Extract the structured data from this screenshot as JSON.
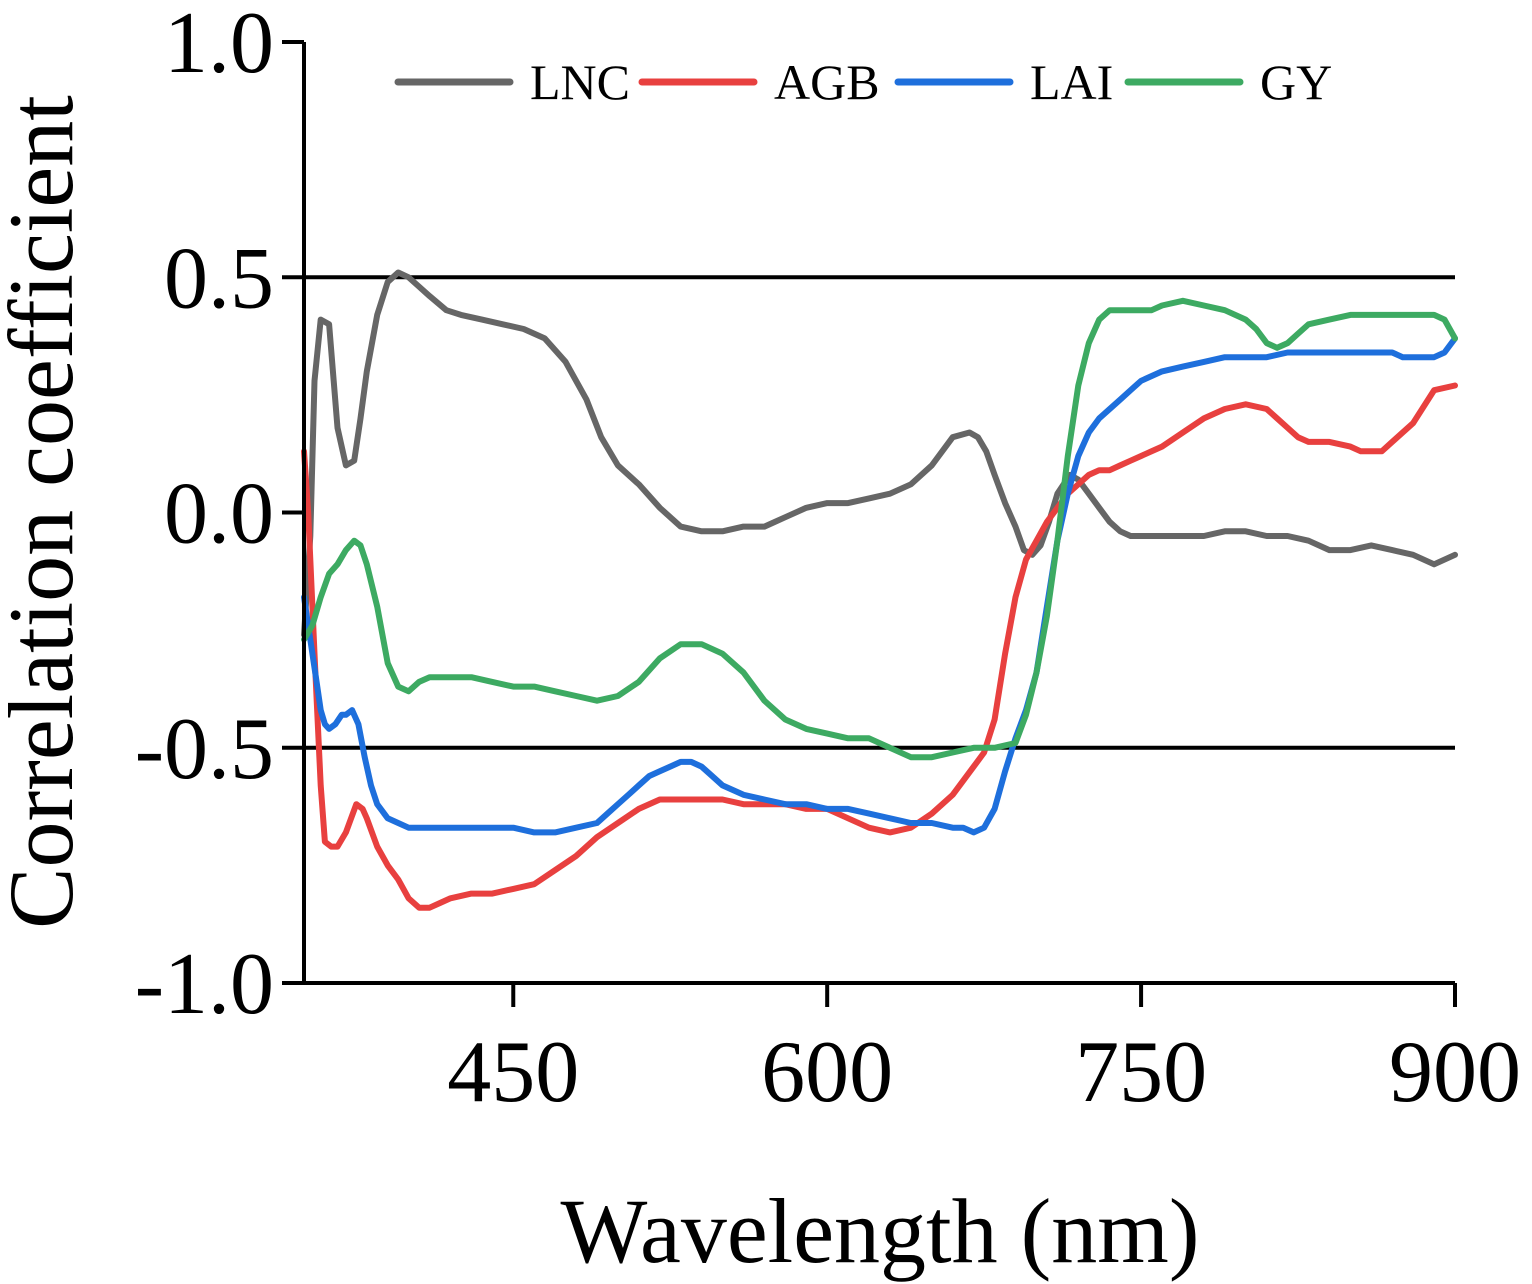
{
  "chart_data": {
    "type": "line",
    "xlabel": "Wavelength (nm)",
    "ylabel": "Correlation coefficient",
    "xlim": [
      350,
      900
    ],
    "ylim": [
      -1.0,
      1.0
    ],
    "xticks": [
      450,
      600,
      750,
      900
    ],
    "xtick_labels": [
      "450",
      "600",
      "750",
      "900"
    ],
    "yticks": [
      1.0,
      0.5,
      0.0,
      -0.5,
      -1.0
    ],
    "ytick_labels": [
      "1.0",
      "0.5",
      "0.0",
      "-0.5",
      "-1.0"
    ],
    "reference_lines": [
      0.5,
      -0.5
    ],
    "grid": false,
    "legend_position": "top",
    "series": [
      {
        "name": "LNC",
        "color": "#666666",
        "x": [
          350,
          353,
          355,
          358,
          362,
          366,
          370,
          374,
          377,
          380,
          385,
          390,
          395,
          400,
          405,
          410,
          418,
          425,
          435,
          445,
          455,
          465,
          475,
          485,
          492,
          500,
          510,
          520,
          530,
          540,
          550,
          560,
          570,
          575,
          580,
          590,
          600,
          610,
          620,
          630,
          640,
          650,
          660,
          668,
          672,
          676,
          680,
          685,
          690,
          694,
          698,
          702,
          706,
          710,
          716,
          720,
          725,
          730,
          735,
          740,
          745,
          750,
          755,
          760,
          765,
          770,
          775,
          780,
          790,
          800,
          810,
          820,
          830,
          840,
          850,
          860,
          870,
          880,
          890,
          900
        ],
        "values": [
          -0.26,
          -0.05,
          0.28,
          0.41,
          0.4,
          0.18,
          0.1,
          0.11,
          0.2,
          0.3,
          0.42,
          0.49,
          0.51,
          0.5,
          0.48,
          0.46,
          0.43,
          0.42,
          0.41,
          0.4,
          0.39,
          0.37,
          0.32,
          0.24,
          0.16,
          0.1,
          0.06,
          0.01,
          -0.03,
          -0.04,
          -0.04,
          -0.03,
          -0.03,
          -0.02,
          -0.01,
          0.01,
          0.02,
          0.02,
          0.03,
          0.04,
          0.06,
          0.1,
          0.16,
          0.17,
          0.16,
          0.13,
          0.08,
          0.02,
          -0.03,
          -0.08,
          -0.09,
          -0.07,
          -0.02,
          0.04,
          0.08,
          0.07,
          0.04,
          0.01,
          -0.02,
          -0.04,
          -0.05,
          -0.05,
          -0.05,
          -0.05,
          -0.05,
          -0.05,
          -0.05,
          -0.05,
          -0.04,
          -0.04,
          -0.05,
          -0.05,
          -0.06,
          -0.08,
          -0.08,
          -0.07,
          -0.08,
          -0.09,
          -0.11,
          -0.09
        ]
      },
      {
        "name": "AGB",
        "color": "#E8403F",
        "x": [
          350,
          352,
          355,
          358,
          360,
          363,
          366,
          370,
          375,
          378,
          380,
          385,
          390,
          395,
          400,
          405,
          410,
          415,
          420,
          430,
          440,
          450,
          460,
          470,
          480,
          490,
          500,
          510,
          520,
          530,
          540,
          550,
          560,
          570,
          580,
          590,
          600,
          610,
          620,
          630,
          640,
          650,
          660,
          665,
          670,
          675,
          680,
          685,
          690,
          695,
          700,
          705,
          710,
          715,
          720,
          725,
          730,
          735,
          740,
          745,
          750,
          755,
          760,
          770,
          780,
          790,
          800,
          810,
          815,
          820,
          825,
          830,
          840,
          850,
          855,
          860,
          865,
          870,
          880,
          890,
          900
        ],
        "values": [
          0.13,
          0.0,
          -0.3,
          -0.58,
          -0.7,
          -0.71,
          -0.71,
          -0.68,
          -0.62,
          -0.63,
          -0.65,
          -0.71,
          -0.75,
          -0.78,
          -0.82,
          -0.84,
          -0.84,
          -0.83,
          -0.82,
          -0.81,
          -0.81,
          -0.8,
          -0.79,
          -0.76,
          -0.73,
          -0.69,
          -0.66,
          -0.63,
          -0.61,
          -0.61,
          -0.61,
          -0.61,
          -0.62,
          -0.62,
          -0.62,
          -0.63,
          -0.63,
          -0.65,
          -0.67,
          -0.68,
          -0.67,
          -0.64,
          -0.6,
          -0.57,
          -0.54,
          -0.51,
          -0.44,
          -0.3,
          -0.18,
          -0.1,
          -0.06,
          -0.02,
          0.01,
          0.04,
          0.06,
          0.08,
          0.09,
          0.09,
          0.1,
          0.11,
          0.12,
          0.13,
          0.14,
          0.17,
          0.2,
          0.22,
          0.23,
          0.22,
          0.2,
          0.18,
          0.16,
          0.15,
          0.15,
          0.14,
          0.13,
          0.13,
          0.13,
          0.15,
          0.19,
          0.26,
          0.27
        ]
      },
      {
        "name": "LAI",
        "color": "#1E6FDC",
        "x": [
          350,
          353,
          356,
          358,
          360,
          362,
          365,
          368,
          370,
          373,
          376,
          379,
          382,
          385,
          390,
          395,
          400,
          405,
          410,
          420,
          430,
          440,
          450,
          460,
          470,
          480,
          490,
          495,
          500,
          505,
          510,
          515,
          520,
          525,
          530,
          535,
          540,
          545,
          550,
          560,
          570,
          580,
          590,
          600,
          610,
          620,
          630,
          640,
          650,
          660,
          665,
          670,
          675,
          680,
          685,
          690,
          695,
          700,
          705,
          710,
          715,
          720,
          725,
          730,
          735,
          740,
          745,
          750,
          760,
          770,
          780,
          790,
          800,
          810,
          820,
          830,
          840,
          850,
          860,
          870,
          875,
          880,
          885,
          890,
          895,
          900
        ],
        "values": [
          -0.18,
          -0.27,
          -0.36,
          -0.42,
          -0.45,
          -0.46,
          -0.45,
          -0.43,
          -0.43,
          -0.42,
          -0.45,
          -0.52,
          -0.58,
          -0.62,
          -0.65,
          -0.66,
          -0.67,
          -0.67,
          -0.67,
          -0.67,
          -0.67,
          -0.67,
          -0.67,
          -0.68,
          -0.68,
          -0.67,
          -0.66,
          -0.64,
          -0.62,
          -0.6,
          -0.58,
          -0.56,
          -0.55,
          -0.54,
          -0.53,
          -0.53,
          -0.54,
          -0.56,
          -0.58,
          -0.6,
          -0.61,
          -0.62,
          -0.62,
          -0.63,
          -0.63,
          -0.64,
          -0.65,
          -0.66,
          -0.66,
          -0.67,
          -0.67,
          -0.68,
          -0.67,
          -0.63,
          -0.55,
          -0.48,
          -0.42,
          -0.34,
          -0.2,
          -0.06,
          0.04,
          0.12,
          0.17,
          0.2,
          0.22,
          0.24,
          0.26,
          0.28,
          0.3,
          0.31,
          0.32,
          0.33,
          0.33,
          0.33,
          0.34,
          0.34,
          0.34,
          0.34,
          0.34,
          0.34,
          0.33,
          0.33,
          0.33,
          0.33,
          0.34,
          0.37
        ]
      },
      {
        "name": "GY",
        "color": "#3DAA62",
        "x": [
          350,
          354,
          358,
          362,
          366,
          370,
          374,
          377,
          380,
          385,
          390,
          395,
          400,
          405,
          410,
          420,
          430,
          440,
          450,
          460,
          470,
          480,
          490,
          500,
          510,
          520,
          530,
          540,
          550,
          560,
          570,
          580,
          590,
          600,
          610,
          620,
          630,
          640,
          650,
          660,
          670,
          680,
          690,
          695,
          700,
          705,
          710,
          715,
          720,
          725,
          730,
          735,
          740,
          745,
          750,
          755,
          760,
          770,
          780,
          790,
          800,
          805,
          810,
          815,
          820,
          825,
          830,
          840,
          850,
          860,
          870,
          880,
          890,
          895,
          900
        ],
        "values": [
          -0.27,
          -0.24,
          -0.18,
          -0.13,
          -0.11,
          -0.08,
          -0.06,
          -0.07,
          -0.11,
          -0.2,
          -0.32,
          -0.37,
          -0.38,
          -0.36,
          -0.35,
          -0.35,
          -0.35,
          -0.36,
          -0.37,
          -0.37,
          -0.38,
          -0.39,
          -0.4,
          -0.39,
          -0.36,
          -0.31,
          -0.28,
          -0.28,
          -0.3,
          -0.34,
          -0.4,
          -0.44,
          -0.46,
          -0.47,
          -0.48,
          -0.48,
          -0.5,
          -0.52,
          -0.52,
          -0.51,
          -0.5,
          -0.5,
          -0.49,
          -0.43,
          -0.34,
          -0.22,
          -0.06,
          0.12,
          0.27,
          0.36,
          0.41,
          0.43,
          0.43,
          0.43,
          0.43,
          0.43,
          0.44,
          0.45,
          0.44,
          0.43,
          0.41,
          0.39,
          0.36,
          0.35,
          0.36,
          0.38,
          0.4,
          0.41,
          0.42,
          0.42,
          0.42,
          0.42,
          0.42,
          0.41,
          0.37
        ]
      }
    ]
  }
}
